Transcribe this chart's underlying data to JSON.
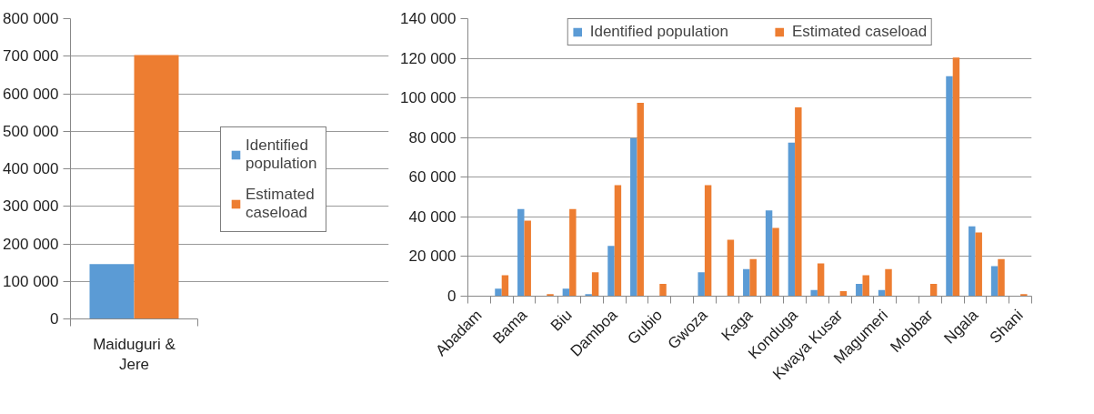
{
  "chart_data": [
    {
      "type": "bar",
      "categories": [
        "Maiduguri & Jere"
      ],
      "series": [
        {
          "name": "Identified population",
          "color": "#5b9bd5",
          "values": [
            146000
          ]
        },
        {
          "name": "Estimated caseload",
          "color": "#ed7d31",
          "values": [
            703000
          ]
        }
      ],
      "ylim": [
        0,
        800000
      ],
      "yticks": [
        {
          "value": 0,
          "label": "0"
        },
        {
          "value": 100000,
          "label": "100 000"
        },
        {
          "value": 200000,
          "label": "200 000"
        },
        {
          "value": 300000,
          "label": "300 000"
        },
        {
          "value": 400000,
          "label": "400 000"
        },
        {
          "value": 500000,
          "label": "500 000"
        },
        {
          "value": 600000,
          "label": "600 000"
        },
        {
          "value": 700000,
          "label": "700 000"
        },
        {
          "value": 800000,
          "label": "800 000"
        }
      ],
      "grid": "y",
      "legend": "right"
    },
    {
      "type": "bar",
      "categories": [
        "Abadam",
        null,
        "Bama",
        null,
        "Biu",
        null,
        "Damboa",
        null,
        "Gubio",
        null,
        "Gwoza",
        null,
        "Kaga",
        null,
        "Konduga",
        null,
        "Kwaya Kusar",
        null,
        "Magumeri",
        null,
        "Mobbar",
        null,
        "Ngala",
        null,
        "Shani"
      ],
      "series": [
        {
          "name": "Identified population",
          "color": "#5b9bd5",
          "values": [
            0,
            3800,
            44000,
            0,
            3800,
            1000,
            25400,
            79600,
            0,
            0,
            12100,
            0,
            13700,
            43300,
            77500,
            3100,
            0,
            6200,
            3100,
            0,
            0,
            111000,
            35200,
            15200,
            0
          ]
        },
        {
          "name": "Estimated caseload",
          "color": "#ed7d31",
          "values": [
            0,
            10600,
            38100,
            1000,
            44000,
            12100,
            56000,
            97500,
            6200,
            0,
            56000,
            28500,
            18700,
            34400,
            95200,
            16500,
            2500,
            10600,
            13700,
            0,
            6200,
            120400,
            32100,
            18700,
            1000
          ]
        }
      ],
      "ylim": [
        0,
        140000
      ],
      "yticks": [
        {
          "value": 0,
          "label": "0"
        },
        {
          "value": 20000,
          "label": "20 000"
        },
        {
          "value": 40000,
          "label": "40 000"
        },
        {
          "value": 60000,
          "label": "60 000"
        },
        {
          "value": 80000,
          "label": "80 000"
        },
        {
          "value": 100000,
          "label": "100 000"
        },
        {
          "value": 120000,
          "label": "120 000"
        },
        {
          "value": 140000,
          "label": "140 000"
        }
      ],
      "grid": "y",
      "legend": "top"
    }
  ]
}
